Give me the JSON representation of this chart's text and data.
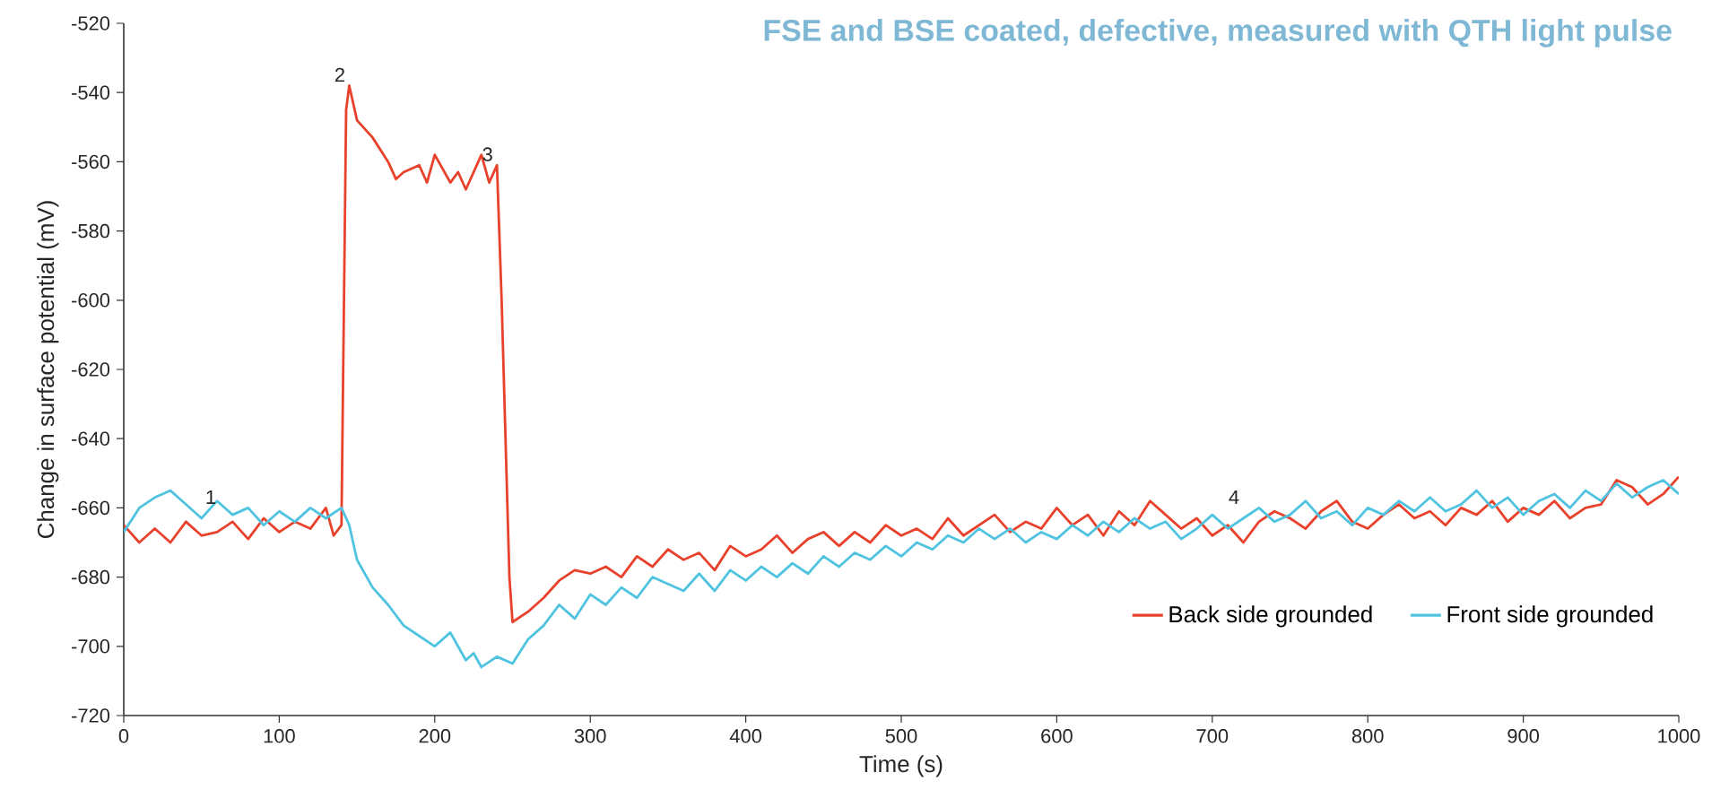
{
  "chart_data": {
    "type": "line",
    "title": "FSE and BSE coated, defective, measured with QTH light pulse",
    "xlabel": "Time (s)",
    "ylabel": "Change in surface potential (mV)",
    "xlim": [
      0,
      1000
    ],
    "xticks": [
      0,
      100,
      200,
      300,
      400,
      500,
      600,
      700,
      800,
      900,
      1000
    ],
    "ylim": [
      -720,
      -520
    ],
    "yticks": [
      -720,
      -700,
      -680,
      -660,
      -640,
      -620,
      -600,
      -580,
      -560,
      -540,
      -520
    ],
    "grid": false,
    "legend": "bottom right",
    "marker": "none",
    "line_style": "solid",
    "annotations": [
      {
        "text": "1",
        "x": 62,
        "y": -660
      },
      {
        "text": "2",
        "x": 145,
        "y": -538
      },
      {
        "text": "3",
        "x": 240,
        "y": -561
      },
      {
        "text": "4",
        "x": 720,
        "y": -660
      }
    ],
    "series": [
      {
        "name": "Back side grounded",
        "color": "#e8412c",
        "x": [
          0,
          10,
          20,
          30,
          40,
          50,
          60,
          70,
          80,
          90,
          100,
          110,
          120,
          130,
          135,
          140,
          143,
          145,
          150,
          160,
          170,
          175,
          180,
          190,
          195,
          200,
          210,
          215,
          220,
          230,
          235,
          240,
          243,
          248,
          250,
          260,
          270,
          280,
          290,
          300,
          310,
          320,
          330,
          340,
          350,
          360,
          370,
          380,
          390,
          400,
          410,
          420,
          430,
          440,
          450,
          460,
          470,
          480,
          490,
          500,
          510,
          520,
          530,
          540,
          550,
          560,
          570,
          580,
          590,
          600,
          610,
          620,
          630,
          640,
          650,
          660,
          670,
          680,
          690,
          700,
          710,
          720,
          730,
          740,
          750,
          760,
          770,
          780,
          790,
          800,
          810,
          820,
          830,
          840,
          850,
          860,
          870,
          880,
          890,
          900,
          910,
          920,
          930,
          940,
          950,
          960,
          970,
          980,
          990,
          1000
        ],
        "values": [
          -665,
          -670,
          -666,
          -670,
          -664,
          -668,
          -667,
          -664,
          -669,
          -663,
          -667,
          -664,
          -666,
          -660,
          -668,
          -665,
          -545,
          -538,
          -548,
          -553,
          -560,
          -565,
          -563,
          -561,
          -566,
          -558,
          -566,
          -563,
          -568,
          -558,
          -566,
          -561,
          -600,
          -680,
          -693,
          -690,
          -686,
          -681,
          -678,
          -679,
          -677,
          -680,
          -674,
          -677,
          -672,
          -675,
          -673,
          -678,
          -671,
          -674,
          -672,
          -668,
          -673,
          -669,
          -667,
          -671,
          -667,
          -670,
          -665,
          -668,
          -666,
          -669,
          -663,
          -668,
          -665,
          -662,
          -667,
          -664,
          -666,
          -660,
          -665,
          -662,
          -668,
          -661,
          -665,
          -658,
          -662,
          -666,
          -663,
          -668,
          -665,
          -670,
          -664,
          -661,
          -663,
          -666,
          -661,
          -658,
          -664,
          -666,
          -662,
          -659,
          -663,
          -661,
          -665,
          -660,
          -662,
          -658,
          -664,
          -660,
          -662,
          -658,
          -663,
          -660,
          -659,
          -652,
          -654,
          -659,
          -656,
          -651
        ]
      },
      {
        "name": "Front side grounded",
        "color": "#4fc3e0",
        "x": [
          0,
          10,
          20,
          30,
          40,
          50,
          60,
          70,
          80,
          90,
          100,
          110,
          120,
          130,
          140,
          145,
          150,
          160,
          170,
          180,
          190,
          200,
          210,
          220,
          225,
          230,
          240,
          250,
          260,
          270,
          280,
          290,
          300,
          310,
          320,
          330,
          340,
          350,
          360,
          370,
          380,
          390,
          400,
          410,
          420,
          430,
          440,
          450,
          460,
          470,
          480,
          490,
          500,
          510,
          520,
          530,
          540,
          550,
          560,
          570,
          580,
          590,
          600,
          610,
          620,
          630,
          640,
          650,
          660,
          670,
          680,
          690,
          700,
          710,
          720,
          730,
          740,
          750,
          760,
          770,
          780,
          790,
          800,
          810,
          820,
          830,
          840,
          850,
          860,
          870,
          880,
          890,
          900,
          910,
          920,
          930,
          940,
          950,
          960,
          970,
          980,
          990,
          1000
        ],
        "values": [
          -667,
          -660,
          -657,
          -655,
          -659,
          -663,
          -658,
          -662,
          -660,
          -665,
          -661,
          -664,
          -660,
          -663,
          -660,
          -665,
          -675,
          -683,
          -688,
          -694,
          -697,
          -700,
          -696,
          -704,
          -702,
          -706,
          -703,
          -705,
          -698,
          -694,
          -688,
          -692,
          -685,
          -688,
          -683,
          -686,
          -680,
          -682,
          -684,
          -679,
          -684,
          -678,
          -681,
          -677,
          -680,
          -676,
          -679,
          -674,
          -677,
          -673,
          -675,
          -671,
          -674,
          -670,
          -672,
          -668,
          -670,
          -666,
          -669,
          -666,
          -670,
          -667,
          -669,
          -665,
          -668,
          -664,
          -667,
          -663,
          -666,
          -664,
          -669,
          -666,
          -662,
          -666,
          -663,
          -660,
          -664,
          -662,
          -658,
          -663,
          -661,
          -665,
          -660,
          -662,
          -658,
          -661,
          -657,
          -661,
          -659,
          -655,
          -660,
          -657,
          -662,
          -658,
          -656,
          -660,
          -655,
          -658,
          -653,
          -657,
          -654,
          -652,
          -656
        ]
      }
    ]
  }
}
